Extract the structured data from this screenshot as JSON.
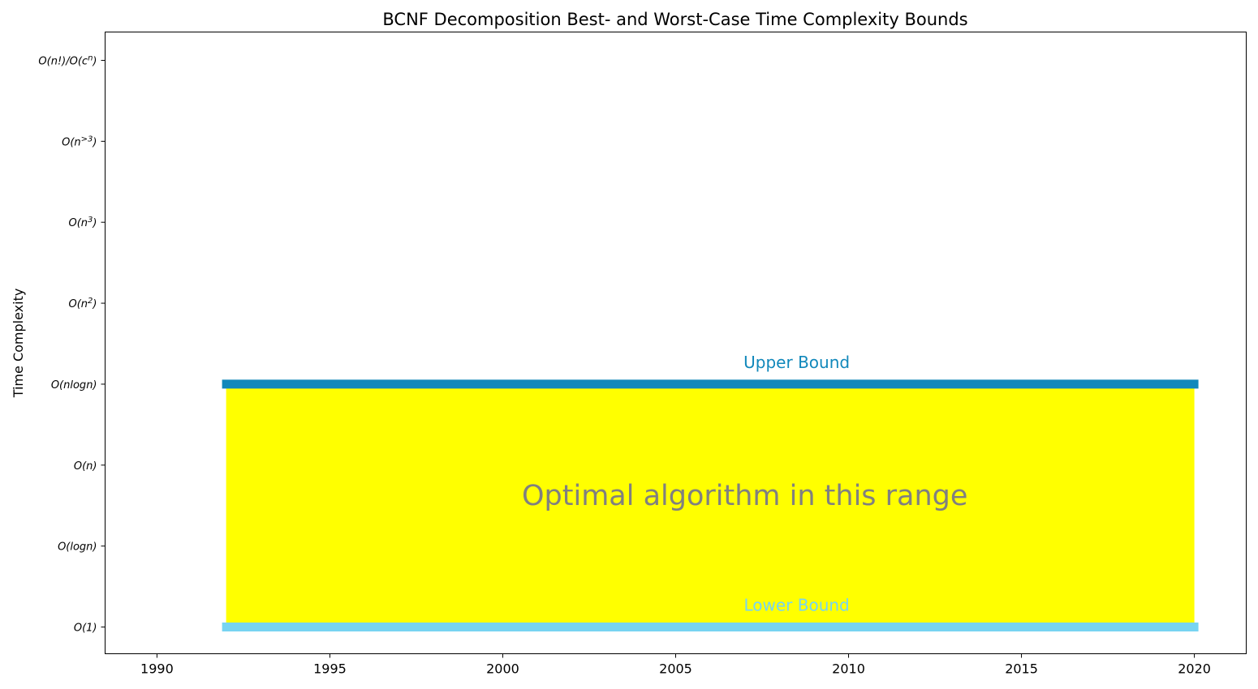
{
  "chart_data": {
    "type": "area",
    "title": "BCNF Decomposition Best- and Worst-Case Time Complexity Bounds",
    "xlabel": "",
    "ylabel": "Time Complexity",
    "xlim": [
      1988.5,
      2021.5
    ],
    "ylim": [
      -0.33,
      7.35
    ],
    "grid": false,
    "x_ticks": [
      1990,
      1995,
      2000,
      2005,
      2010,
      2015,
      2020
    ],
    "y_ticks": [
      {
        "value": 0,
        "base": "O(1)",
        "sup": ""
      },
      {
        "value": 1,
        "base": "O(logn)",
        "sup": ""
      },
      {
        "value": 2,
        "base": "O(n)",
        "sup": ""
      },
      {
        "value": 3,
        "base": "O(nlogn)",
        "sup": ""
      },
      {
        "value": 4,
        "base": "O(n",
        "sup": "2",
        "tail": ")"
      },
      {
        "value": 5,
        "base": "O(n",
        "sup": "3",
        "tail": ")"
      },
      {
        "value": 6,
        "base": "O(n",
        "sup": ">3",
        "tail": ")"
      },
      {
        "value": 7,
        "base": "O(n!)/O(c",
        "sup": "n",
        "tail": ")"
      }
    ],
    "series": [
      {
        "name": "Upper Bound",
        "x": [
          1992,
          2020
        ],
        "y": [
          3,
          3
        ],
        "color": "#1188bb"
      },
      {
        "name": "Lower Bound",
        "x": [
          1992,
          2020
        ],
        "y": [
          0,
          0
        ],
        "color": "#77d4f2"
      }
    ],
    "fill": {
      "x": [
        1992,
        2020
      ],
      "y_lower": 0,
      "y_upper": 3,
      "color": "#ffff00"
    },
    "annotations": [
      {
        "text": "Upper Bound",
        "x": 2008.5,
        "y": 3.27,
        "color": "#1188bb"
      },
      {
        "text": "Lower Bound",
        "x": 2008.5,
        "y": 0.27,
        "color": "#77d4f2"
      },
      {
        "text": "Optimal algorithm in this range",
        "x": 2007,
        "y": 1.62,
        "color": "#808080"
      }
    ]
  }
}
